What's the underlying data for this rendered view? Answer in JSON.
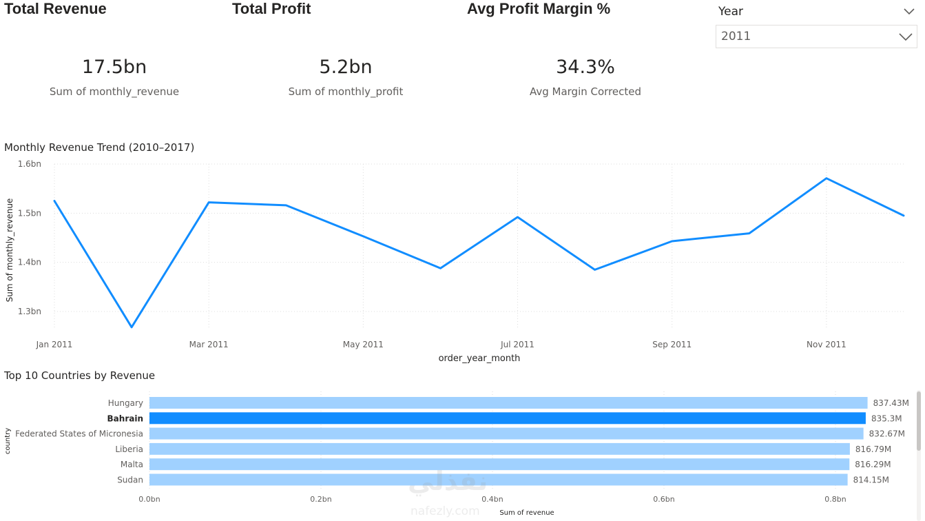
{
  "kpis": [
    {
      "title": "Total Revenue",
      "value": "17.5bn",
      "label": "Sum of monthly_revenue"
    },
    {
      "title": "Total Profit",
      "value": "5.2bn",
      "label": "Sum of monthly_profit"
    },
    {
      "title": "Avg Profit Margin %",
      "value": "34.3%",
      "label": "Avg Margin Corrected"
    }
  ],
  "slicer": {
    "label": "Year",
    "value": "2011",
    "icon": "chevron-down-icon"
  },
  "chart_data": [
    {
      "type": "line",
      "title": "Monthly Revenue Trend (2010–2017)",
      "xlabel": "order_year_month",
      "ylabel": "Sum of monthly_revenue",
      "x": [
        "Jan 2011",
        "Feb 2011",
        "Mar 2011",
        "Apr 2011",
        "May 2011",
        "Jun 2011",
        "Jul 2011",
        "Aug 2011",
        "Sep 2011",
        "Oct 2011",
        "Nov 2011",
        "Dec 2011"
      ],
      "x_tick_labels": [
        "Jan 2011",
        "Mar 2011",
        "May 2011",
        "Jul 2011",
        "Sep 2011",
        "Nov 2011"
      ],
      "values": [
        1.525,
        1.268,
        1.522,
        1.516,
        1.453,
        1.388,
        1.492,
        1.385,
        1.443,
        1.459,
        1.571,
        1.495
      ],
      "unit": "bn",
      "y_ticks": [
        "1.6bn",
        "1.5bn",
        "1.4bn",
        "1.3bn"
      ],
      "ylim": [
        1.3,
        1.6
      ],
      "grid": true,
      "color": "#118dff"
    },
    {
      "type": "bar",
      "orientation": "horizontal",
      "title": "Top 10 Countries by Revenue",
      "xlabel": "Sum of revenue",
      "ylabel": "country",
      "categories": [
        "Hungary",
        "Bahrain",
        "Federated States of Micronesia",
        "Liberia",
        "Malta",
        "Sudan"
      ],
      "values": [
        837.43,
        835.3,
        832.67,
        816.79,
        816.29,
        814.15
      ],
      "data_labels": [
        "837.43M",
        "835.3M",
        "832.67M",
        "816.79M",
        "816.29M",
        "814.15M"
      ],
      "highlighted": "Bahrain",
      "x_ticks": [
        "0.0bn",
        "0.2bn",
        "0.4bn",
        "0.6bn",
        "0.8bn"
      ],
      "xlim": [
        0,
        1000
      ],
      "grid": true,
      "color": "#a0d1ff",
      "highlight_color": "#118dff"
    }
  ],
  "watermark": {
    "logo_text": "نفذلي",
    "text": "nafezly.com"
  }
}
